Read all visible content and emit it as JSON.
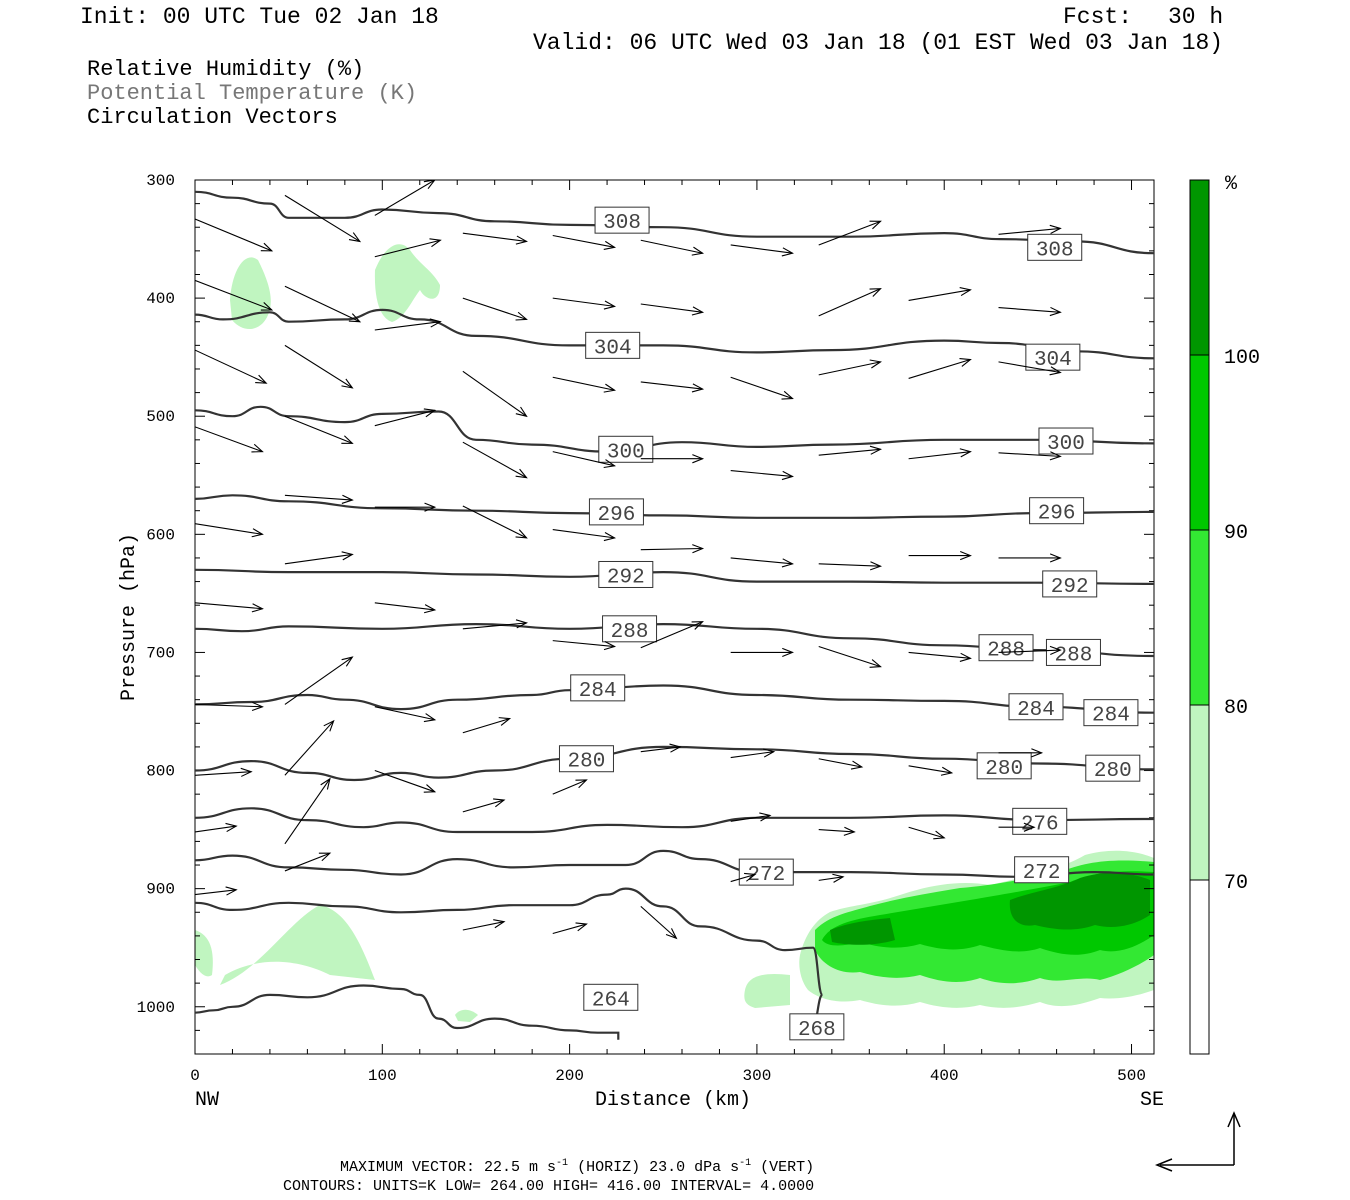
{
  "header": {
    "init": "Init: 00 UTC Tue 02 Jan 18",
    "fcst_label": "Fcst:",
    "fcst_value": "30 h",
    "valid": "Valid: 06 UTC Wed 03 Jan 18 (01 EST Wed 03 Jan 18)"
  },
  "legend": {
    "rh": "Relative Humidity (%)",
    "theta": "Potential Temperature (K)",
    "vectors": "Circulation Vectors"
  },
  "colors": {
    "axis": "#000000",
    "contour": "#333333",
    "rh_70": "#c0f5c0",
    "rh_80": "#33e833",
    "rh_90": "#00c800",
    "rh_100": "#009600"
  },
  "chart_data": {
    "type": "cross-section",
    "xlabel": "Distance (km)",
    "ylabel": "Pressure (hPa)",
    "xlim": [
      0,
      512
    ],
    "ylim": [
      1040,
      300
    ],
    "xticks": [
      "0",
      "100",
      "200",
      "300",
      "400",
      "500"
    ],
    "yticks": [
      "300",
      "400",
      "500",
      "600",
      "700",
      "800",
      "900",
      "1000"
    ],
    "x_endpoints": {
      "left": "NW",
      "right": "SE"
    },
    "colorbar": {
      "unit": "%",
      "levels": [
        "70",
        "80",
        "90",
        "100"
      ]
    },
    "theta_contours": [
      {
        "value": "308",
        "points": [
          [
            0,
            310
          ],
          [
            20,
            315
          ],
          [
            40,
            320
          ],
          [
            50,
            332
          ],
          [
            80,
            332
          ],
          [
            100,
            325
          ],
          [
            130,
            328
          ],
          [
            160,
            335
          ],
          [
            200,
            338
          ],
          [
            250,
            340
          ],
          [
            300,
            348
          ],
          [
            350,
            348
          ],
          [
            400,
            345
          ],
          [
            430,
            350
          ],
          [
            470,
            352
          ],
          [
            512,
            362
          ]
        ],
        "labels": [
          [
            228,
            334
          ],
          [
            459,
            357
          ]
        ]
      },
      {
        "value": "304",
        "points": [
          [
            0,
            414
          ],
          [
            15,
            418
          ],
          [
            40,
            412
          ],
          [
            50,
            420
          ],
          [
            80,
            418
          ],
          [
            100,
            410
          ],
          [
            120,
            418
          ],
          [
            150,
            432
          ],
          [
            200,
            440
          ],
          [
            250,
            440
          ],
          [
            300,
            446
          ],
          [
            340,
            444
          ],
          [
            400,
            436
          ],
          [
            430,
            438
          ],
          [
            470,
            445
          ],
          [
            512,
            451
          ]
        ],
        "labels": [
          [
            223,
            440
          ],
          [
            458,
            450
          ]
        ]
      },
      {
        "value": "300",
        "points": [
          [
            0,
            495
          ],
          [
            20,
            500
          ],
          [
            35,
            492
          ],
          [
            50,
            500
          ],
          [
            80,
            505
          ],
          [
            100,
            498
          ],
          [
            130,
            496
          ],
          [
            150,
            520
          ],
          [
            180,
            524
          ],
          [
            220,
            530
          ],
          [
            260,
            522
          ],
          [
            300,
            526
          ],
          [
            340,
            524
          ],
          [
            400,
            520
          ],
          [
            450,
            520
          ],
          [
            512,
            523
          ]
        ],
        "labels": [
          [
            230,
            528
          ],
          [
            465,
            521
          ]
        ]
      },
      {
        "value": "296",
        "points": [
          [
            0,
            570
          ],
          [
            20,
            567
          ],
          [
            50,
            572
          ],
          [
            100,
            578
          ],
          [
            150,
            580
          ],
          [
            200,
            582
          ],
          [
            250,
            584
          ],
          [
            300,
            586
          ],
          [
            350,
            586
          ],
          [
            400,
            585
          ],
          [
            450,
            582
          ],
          [
            512,
            581
          ]
        ],
        "labels": [
          [
            225,
            581
          ],
          [
            460,
            580
          ]
        ]
      },
      {
        "value": "292",
        "points": [
          [
            0,
            630
          ],
          [
            50,
            632
          ],
          [
            100,
            632
          ],
          [
            150,
            634
          ],
          [
            200,
            636
          ],
          [
            250,
            632
          ],
          [
            300,
            640
          ],
          [
            350,
            640
          ],
          [
            400,
            641
          ],
          [
            450,
            641
          ],
          [
            512,
            642
          ]
        ],
        "labels": [
          [
            230,
            634
          ],
          [
            467,
            642
          ]
        ]
      },
      {
        "value": "288",
        "points": [
          [
            0,
            680
          ],
          [
            25,
            682
          ],
          [
            50,
            678
          ],
          [
            100,
            680
          ],
          [
            150,
            676
          ],
          [
            200,
            680
          ],
          [
            250,
            676
          ],
          [
            300,
            680
          ],
          [
            350,
            688
          ],
          [
            400,
            694
          ],
          [
            450,
            698
          ],
          [
            512,
            703
          ]
        ],
        "labels": [
          [
            232,
            680
          ],
          [
            433,
            696
          ],
          [
            469,
            700
          ]
        ]
      },
      {
        "value": "284",
        "points": [
          [
            0,
            744
          ],
          [
            30,
            742
          ],
          [
            60,
            736
          ],
          [
            80,
            740
          ],
          [
            110,
            748
          ],
          [
            140,
            740
          ],
          [
            180,
            736
          ],
          [
            200,
            732
          ],
          [
            250,
            728
          ],
          [
            300,
            736
          ],
          [
            350,
            740
          ],
          [
            400,
            741
          ],
          [
            450,
            746
          ],
          [
            512,
            751
          ]
        ],
        "labels": [
          [
            215,
            730
          ],
          [
            449,
            746
          ],
          [
            489,
            751
          ]
        ]
      },
      {
        "value": "280",
        "points": [
          [
            0,
            800
          ],
          [
            30,
            792
          ],
          [
            60,
            802
          ],
          [
            85,
            808
          ],
          [
            110,
            802
          ],
          [
            130,
            806
          ],
          [
            160,
            800
          ],
          [
            200,
            790
          ],
          [
            250,
            780
          ],
          [
            300,
            782
          ],
          [
            350,
            786
          ],
          [
            400,
            790
          ],
          [
            450,
            794
          ],
          [
            512,
            799
          ]
        ],
        "labels": [
          [
            209,
            790
          ],
          [
            432,
            796
          ],
          [
            490,
            798
          ]
        ]
      },
      {
        "value": "276",
        "points": [
          [
            0,
            840
          ],
          [
            30,
            832
          ],
          [
            60,
            842
          ],
          [
            90,
            848
          ],
          [
            110,
            844
          ],
          [
            140,
            852
          ],
          [
            180,
            852
          ],
          [
            220,
            846
          ],
          [
            260,
            848
          ],
          [
            300,
            840
          ],
          [
            350,
            840
          ],
          [
            400,
            838
          ],
          [
            450,
            842
          ],
          [
            512,
            841
          ]
        ],
        "labels": [
          [
            451,
            843
          ]
        ]
      },
      {
        "value": "272",
        "points": [
          [
            0,
            876
          ],
          [
            20,
            872
          ],
          [
            50,
            882
          ],
          [
            80,
            884
          ],
          [
            110,
            888
          ],
          [
            140,
            875
          ],
          [
            170,
            882
          ],
          [
            200,
            880
          ],
          [
            230,
            880
          ],
          [
            250,
            868
          ],
          [
            270,
            875
          ],
          [
            300,
            886
          ],
          [
            350,
            886
          ],
          [
            400,
            888
          ],
          [
            440,
            890
          ],
          [
            480,
            886
          ],
          [
            512,
            888
          ]
        ],
        "labels": [
          [
            305,
            886
          ],
          [
            452,
            884
          ]
        ]
      },
      {
        "value": "268",
        "points": [
          [
            0,
            912
          ],
          [
            20,
            918
          ],
          [
            50,
            912
          ],
          [
            80,
            915
          ],
          [
            110,
            920
          ],
          [
            140,
            918
          ],
          [
            170,
            914
          ],
          [
            200,
            914
          ],
          [
            220,
            905
          ],
          [
            230,
            900
          ],
          [
            250,
            915
          ],
          [
            270,
            932
          ],
          [
            300,
            944
          ],
          [
            315,
            952
          ],
          [
            330,
            950
          ],
          [
            335,
            990
          ],
          [
            330,
            1015
          ]
        ],
        "labels": [
          [
            332,
            1017
          ]
        ]
      },
      {
        "value": "264",
        "points": [
          [
            0,
            1005
          ],
          [
            10,
            1003
          ],
          [
            20,
            1000
          ],
          [
            40,
            990
          ],
          [
            60,
            992
          ],
          [
            90,
            982
          ],
          [
            110,
            985
          ],
          [
            120,
            990
          ],
          [
            130,
            1010
          ],
          [
            140,
            1018
          ],
          [
            160,
            1010
          ],
          [
            180,
            1016
          ],
          [
            200,
            1020
          ],
          [
            215,
            1022
          ],
          [
            226,
            1022
          ],
          [
            226,
            1028
          ]
        ],
        "labels": [
          [
            222,
            992
          ]
        ]
      }
    ],
    "circulation_vectors": [
      [
        0,
        333,
        41,
        360
      ],
      [
        0,
        385,
        41,
        410
      ],
      [
        0,
        444,
        38,
        472
      ],
      [
        0,
        509,
        36,
        530
      ],
      [
        0,
        591,
        36,
        600
      ],
      [
        0,
        658,
        36,
        663
      ],
      [
        0,
        744,
        36,
        746
      ],
      [
        0,
        804,
        30,
        801
      ],
      [
        0,
        852,
        22,
        847
      ],
      [
        0,
        905,
        22,
        901
      ],
      [
        48,
        313,
        88,
        352
      ],
      [
        48,
        390,
        88,
        420
      ],
      [
        48,
        440,
        84,
        476
      ],
      [
        48,
        500,
        84,
        523
      ],
      [
        48,
        567,
        84,
        571
      ],
      [
        48,
        625,
        84,
        617
      ],
      [
        48,
        744,
        84,
        704
      ],
      [
        48,
        804,
        74,
        758
      ],
      [
        48,
        862,
        72,
        807
      ],
      [
        48,
        885,
        72,
        870
      ],
      [
        96,
        330,
        128,
        300
      ],
      [
        96,
        365,
        131,
        351
      ],
      [
        96,
        427,
        131,
        420
      ],
      [
        96,
        508,
        128,
        495
      ],
      [
        96,
        577,
        128,
        577
      ],
      [
        96,
        658,
        128,
        664
      ],
      [
        96,
        746,
        128,
        757
      ],
      [
        96,
        800,
        128,
        818
      ],
      [
        143,
        345,
        177,
        352
      ],
      [
        143,
        400,
        177,
        418
      ],
      [
        143,
        462,
        177,
        500
      ],
      [
        143,
        522,
        177,
        552
      ],
      [
        143,
        576,
        177,
        603
      ],
      [
        143,
        680,
        177,
        675
      ],
      [
        143,
        768,
        168,
        756
      ],
      [
        143,
        835,
        165,
        825
      ],
      [
        143,
        935,
        165,
        928
      ],
      [
        191,
        347,
        224,
        357
      ],
      [
        191,
        400,
        224,
        407
      ],
      [
        191,
        467,
        224,
        478
      ],
      [
        191,
        530,
        224,
        542
      ],
      [
        191,
        596,
        224,
        603
      ],
      [
        191,
        690,
        224,
        695
      ],
      [
        191,
        820,
        209,
        808
      ],
      [
        191,
        938,
        209,
        930
      ],
      [
        238,
        351,
        271,
        362
      ],
      [
        238,
        405,
        271,
        412
      ],
      [
        238,
        471,
        271,
        477
      ],
      [
        238,
        536,
        271,
        536
      ],
      [
        238,
        613,
        271,
        612
      ],
      [
        238,
        696,
        271,
        674
      ],
      [
        238,
        784,
        259,
        780
      ],
      [
        238,
        915,
        257,
        942
      ],
      [
        286,
        355,
        319,
        362
      ],
      [
        286,
        467,
        319,
        485
      ],
      [
        286,
        546,
        319,
        551
      ],
      [
        286,
        620,
        319,
        625
      ],
      [
        286,
        700,
        319,
        700
      ],
      [
        286,
        789,
        309,
        784
      ],
      [
        286,
        843,
        307,
        838
      ],
      [
        286,
        894,
        299,
        888
      ],
      [
        333,
        355,
        366,
        335
      ],
      [
        333,
        415,
        366,
        392
      ],
      [
        333,
        465,
        366,
        454
      ],
      [
        333,
        533,
        366,
        528
      ],
      [
        333,
        625,
        366,
        627
      ],
      [
        333,
        695,
        366,
        712
      ],
      [
        333,
        790,
        356,
        797
      ],
      [
        333,
        850,
        352,
        852
      ],
      [
        333,
        893,
        346,
        890
      ],
      [
        381,
        402,
        414,
        393
      ],
      [
        381,
        468,
        414,
        452
      ],
      [
        381,
        536,
        414,
        530
      ],
      [
        381,
        618,
        414,
        618
      ],
      [
        381,
        700,
        414,
        705
      ],
      [
        381,
        796,
        404,
        802
      ],
      [
        381,
        848,
        400,
        857
      ],
      [
        429,
        346,
        462,
        341
      ],
      [
        429,
        408,
        462,
        412
      ],
      [
        429,
        454,
        462,
        463
      ],
      [
        429,
        531,
        462,
        534
      ],
      [
        429,
        620,
        462,
        620
      ],
      [
        429,
        700,
        462,
        698
      ],
      [
        429,
        785,
        452,
        785
      ],
      [
        429,
        848,
        448,
        848
      ]
    ]
  },
  "footer": {
    "line1_prefix": "MAXIMUM VECTOR:  22.5 m s",
    "line1_mid": " (HORIZ)         23.0 dPa s",
    "line1_suffix": " (VERT)",
    "exponent": "-1",
    "line2": "CONTOURS:  UNITS=K  LOW=  264.00        HIGH=  416.00       INTERVAL=    4.0000"
  }
}
